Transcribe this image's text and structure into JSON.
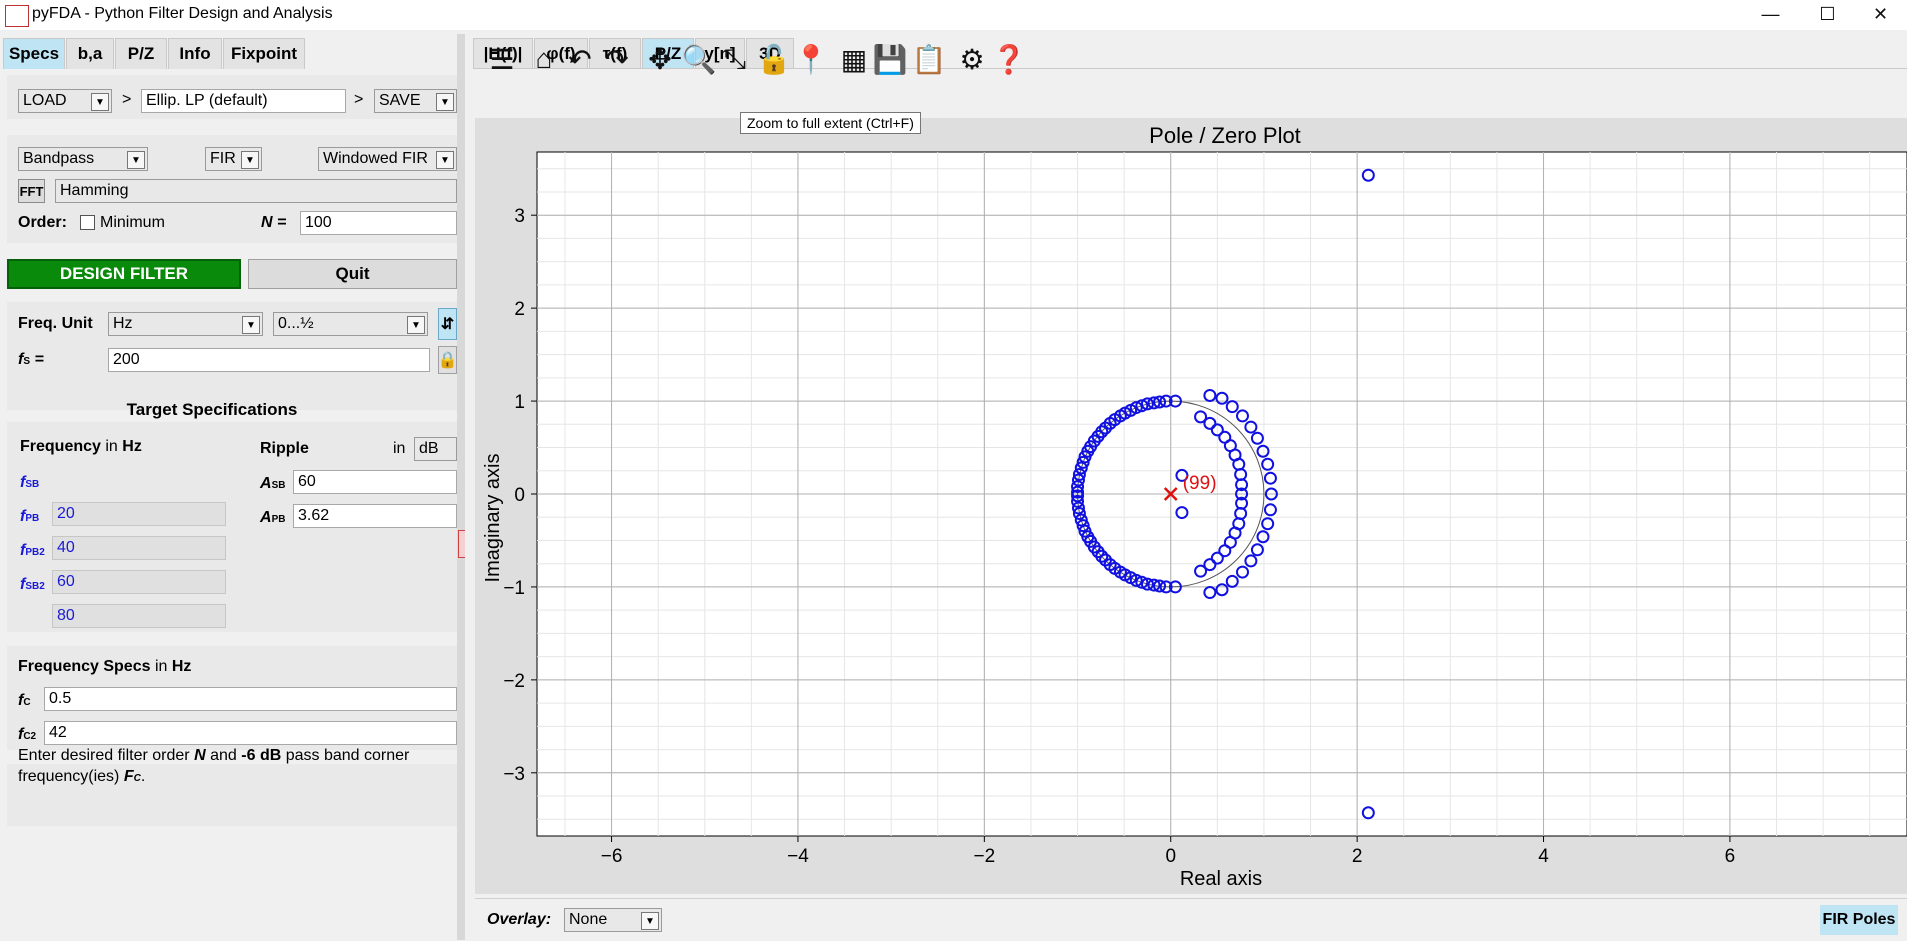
{
  "window": {
    "title": "pyFDA - Python Filter Design and Analysis",
    "minimize_glyph": "—",
    "maximize_glyph": "☐",
    "close_glyph": "✕"
  },
  "left_tabs": [
    "Specs",
    "b,a",
    "P/Z",
    "Info",
    "Fixpoint"
  ],
  "file_row": {
    "load_label": "LOAD",
    "sep1": ">",
    "filter_name": "Ellip. LP (default)",
    "sep2": ">",
    "save_label": "SAVE"
  },
  "filter_select": {
    "response_type": "Bandpass",
    "filter_class": "FIR",
    "design_method": "Windowed FIR",
    "fft_label": "FFT",
    "window": "Hamming",
    "order_label": "Order:",
    "minimum_label": "Minimum",
    "minimum_checked": false,
    "n_label": "N =",
    "n_value": "100"
  },
  "design_buttons": {
    "design": "DESIGN FILTER",
    "quit": "Quit"
  },
  "freq_unit": {
    "label": "Freq. Unit",
    "unit": "Hz",
    "range": "0...½",
    "fs_label": "f",
    "fs_sub": "S",
    "fs_eq": "=",
    "fs_value": "200"
  },
  "target_specs": {
    "title": "Target Specifications",
    "freq_header": "Frequency",
    "freq_in": "in",
    "freq_unit": "Hz",
    "ripple_header": "Ripple",
    "ripple_in": "in",
    "ripple_unit": "dB",
    "freqs": [
      {
        "label": "f",
        "sub": "SB",
        "value": "20"
      },
      {
        "label": "f",
        "sub": "PB",
        "value": "40"
      },
      {
        "label": "f",
        "sub": "PB2",
        "value": "60"
      },
      {
        "label": "f",
        "sub": "SB2",
        "value": "80"
      }
    ],
    "amps": [
      {
        "label": "A",
        "sub": "SB",
        "value": "60"
      },
      {
        "label": "A",
        "sub": "PB",
        "value": "3.62"
      }
    ]
  },
  "freq_specs": {
    "title": "Frequency Specs",
    "in": "in",
    "unit": "Hz",
    "rows": [
      {
        "label": "f",
        "sub": "C",
        "value": "0.5"
      },
      {
        "label": "f",
        "sub": "C2",
        "value": "42"
      }
    ]
  },
  "info_text": {
    "t1": "Enter desired filter order",
    "t2": "N",
    "t3": "and",
    "t4": "-6 dB",
    "t5": "pass band corner",
    "t6": "frequency(ies)",
    "t7": "F",
    "t7sub": "C",
    "t8": "."
  },
  "right_tabs": [
    "|H(f)|",
    "φ(f)",
    "τ(f)",
    "P/Z",
    "y[n]",
    "3D"
  ],
  "toolbar": {
    "icons": [
      "menu-icon",
      "home-icon",
      "undo-icon",
      "redo-icon",
      "pan-icon",
      "zoom-icon",
      "zoom-full-icon",
      "lock-icon",
      "marker-icon",
      "grid-icon",
      "save-icon",
      "clipboard-icon",
      "settings-icon",
      "help-icon"
    ],
    "tooltip": "Zoom to full extent (Ctrl+F)"
  },
  "overlay": {
    "label": "Overlay:",
    "value": "None",
    "fir_poles": "FIR Poles"
  },
  "chart_data": {
    "type": "scatter",
    "title": "Pole / Zero Plot",
    "xlabel": "Real axis",
    "ylabel": "Imaginary axis",
    "xlim": [
      -6.8,
      7.9
    ],
    "ylim": [
      -3.68,
      3.68
    ],
    "xticks": [
      -6,
      -4,
      -2,
      0,
      2,
      4,
      6
    ],
    "xtick_labels": [
      "−6",
      "−4",
      "−2",
      "0",
      "2",
      "4",
      "6"
    ],
    "yticks": [
      -3,
      -2,
      -1,
      0,
      1,
      2,
      3
    ],
    "ytick_labels": [
      "−3",
      "−2",
      "−1",
      "0",
      "1",
      "2",
      "3"
    ],
    "grid": true,
    "unit_circle": true,
    "pole": {
      "x": 0,
      "y": 0,
      "multiplicity_label": "(99)",
      "color": "#e01010"
    },
    "zero_color": "#1010e0",
    "zeros": [
      [
        2.12,
        3.43
      ],
      [
        2.12,
        -3.43
      ],
      [
        0.12,
        0.2
      ],
      [
        0.12,
        -0.2
      ],
      [
        0.42,
        1.06
      ],
      [
        0.55,
        1.03
      ],
      [
        0.66,
        0.94
      ],
      [
        0.77,
        0.84
      ],
      [
        0.86,
        0.72
      ],
      [
        0.93,
        0.6
      ],
      [
        0.99,
        0.46
      ],
      [
        1.04,
        0.32
      ],
      [
        1.07,
        0.17
      ],
      [
        1.08,
        0.0
      ],
      [
        1.07,
        -0.17
      ],
      [
        1.04,
        -0.32
      ],
      [
        0.99,
        -0.46
      ],
      [
        0.93,
        -0.6
      ],
      [
        0.86,
        -0.72
      ],
      [
        0.77,
        -0.84
      ],
      [
        0.66,
        -0.94
      ],
      [
        0.55,
        -1.03
      ],
      [
        0.42,
        -1.06
      ],
      [
        0.32,
        0.83
      ],
      [
        0.42,
        0.76
      ],
      [
        0.5,
        0.69
      ],
      [
        0.58,
        0.61
      ],
      [
        0.64,
        0.52
      ],
      [
        0.69,
        0.42
      ],
      [
        0.73,
        0.32
      ],
      [
        0.75,
        0.21
      ],
      [
        0.76,
        0.1
      ],
      [
        0.76,
        0.0
      ],
      [
        0.76,
        -0.1
      ],
      [
        0.75,
        -0.21
      ],
      [
        0.73,
        -0.32
      ],
      [
        0.69,
        -0.42
      ],
      [
        0.64,
        -0.52
      ],
      [
        0.58,
        -0.61
      ],
      [
        0.5,
        -0.69
      ],
      [
        0.42,
        -0.76
      ],
      [
        0.32,
        -0.83
      ],
      [
        0.05,
        1.0
      ],
      [
        -0.05,
        1.0
      ],
      [
        -0.12,
        0.99
      ],
      [
        -0.18,
        0.98
      ],
      [
        -0.25,
        0.97
      ],
      [
        -0.31,
        0.95
      ],
      [
        -0.37,
        0.93
      ],
      [
        -0.43,
        0.9
      ],
      [
        -0.49,
        0.87
      ],
      [
        -0.54,
        0.84
      ],
      [
        -0.6,
        0.8
      ],
      [
        -0.65,
        0.76
      ],
      [
        -0.7,
        0.71
      ],
      [
        -0.74,
        0.67
      ],
      [
        -0.78,
        0.62
      ],
      [
        -0.82,
        0.57
      ],
      [
        -0.86,
        0.51
      ],
      [
        -0.89,
        0.46
      ],
      [
        -0.92,
        0.4
      ],
      [
        -0.94,
        0.34
      ],
      [
        -0.96,
        0.28
      ],
      [
        -0.98,
        0.21
      ],
      [
        -0.99,
        0.15
      ],
      [
        -1.0,
        0.08
      ],
      [
        -1.0,
        0.02
      ],
      [
        -1.0,
        -0.02
      ],
      [
        -1.0,
        -0.08
      ],
      [
        -0.99,
        -0.15
      ],
      [
        -0.98,
        -0.21
      ],
      [
        -0.96,
        -0.28
      ],
      [
        -0.94,
        -0.34
      ],
      [
        -0.92,
        -0.4
      ],
      [
        -0.89,
        -0.46
      ],
      [
        -0.86,
        -0.51
      ],
      [
        -0.82,
        -0.57
      ],
      [
        -0.78,
        -0.62
      ],
      [
        -0.74,
        -0.67
      ],
      [
        -0.7,
        -0.71
      ],
      [
        -0.65,
        -0.76
      ],
      [
        -0.6,
        -0.8
      ],
      [
        -0.54,
        -0.84
      ],
      [
        -0.49,
        -0.87
      ],
      [
        -0.43,
        -0.9
      ],
      [
        -0.37,
        -0.93
      ],
      [
        -0.31,
        -0.95
      ],
      [
        -0.25,
        -0.97
      ],
      [
        -0.18,
        -0.98
      ],
      [
        -0.12,
        -0.99
      ],
      [
        -0.05,
        -1.0
      ],
      [
        0.05,
        -1.0
      ]
    ]
  }
}
